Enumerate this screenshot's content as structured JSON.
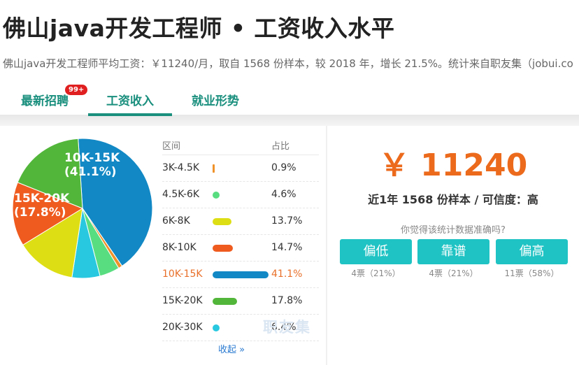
{
  "page": {
    "title": "佛山java开发工程师 • 工资收入水平",
    "subtitle": "佛山java开发工程师平均工资：￥11240/月，取自 1568 份样本，较 2018 年，增长 21.5%。统计来自职友集（jobui.co"
  },
  "tabs": [
    {
      "label": "最新招聘",
      "badge": "99+"
    },
    {
      "label": "工资收入",
      "active": true
    },
    {
      "label": "就业形势"
    }
  ],
  "chart_data": {
    "type": "pie",
    "categories": [
      "3K-4.5K",
      "4.5K-6K",
      "6K-8K",
      "8K-10K",
      "10K-15K",
      "15K-20K",
      "20K-30K"
    ],
    "values": [
      0.9,
      4.6,
      13.7,
      14.7,
      41.1,
      17.8,
      6.4
    ],
    "colors": [
      "#f0922a",
      "#58dd80",
      "#dede14",
      "#ef5a1e",
      "#1289c4",
      "#52b63a",
      "#27c8e0"
    ],
    "labels_on_pie": [
      {
        "line1": "10K-15K",
        "line2": "(41.1%)"
      },
      {
        "line1": "15K-20K",
        "line2": "(17.8%)"
      }
    ]
  },
  "table": {
    "header_range": "区间",
    "header_ratio": "占比",
    "rows": [
      {
        "range": "3K-4.5K",
        "pct": "0.9%"
      },
      {
        "range": "4.5K-6K",
        "pct": "4.6%"
      },
      {
        "range": "6K-8K",
        "pct": "13.7%"
      },
      {
        "range": "8K-10K",
        "pct": "14.7%"
      },
      {
        "range": "10K-15K",
        "pct": "41.1%"
      },
      {
        "range": "15K-20K",
        "pct": "17.8%"
      },
      {
        "range": "20K-30K",
        "pct": "6.4%"
      }
    ],
    "highlight_index": 4,
    "collapse_label": "收起 »",
    "watermark": "职友集"
  },
  "summary": {
    "salary": "￥ 11240",
    "sample": "近1年 1568 份样本 / 可信度：高",
    "question": "你觉得该统计数据准确吗?",
    "votes": [
      {
        "label": "偏低",
        "count": "4票（21%）"
      },
      {
        "label": "靠谱",
        "count": "4票（21%）"
      },
      {
        "label": "偏高",
        "count": "11票（58%）"
      }
    ]
  }
}
